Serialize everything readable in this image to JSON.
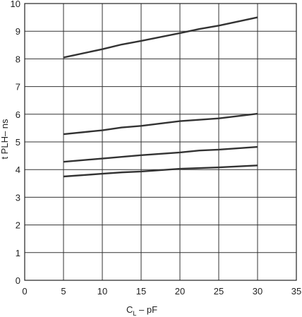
{
  "chart_data": {
    "type": "line",
    "xlabel": "C",
    "xlabel_sub": "L",
    "xlabel_suffix": " – pF",
    "ylabel": "t PLH– ns",
    "xlim": [
      0,
      35
    ],
    "ylim": [
      0,
      10
    ],
    "x_ticks": [
      0,
      5,
      10,
      15,
      20,
      25,
      30,
      35
    ],
    "y_ticks": [
      0,
      1,
      2,
      3,
      4,
      5,
      6,
      7,
      8,
      9,
      10
    ],
    "grid": true,
    "series": [
      {
        "x": [
          5,
          10,
          12.5,
          15,
          20,
          22.5,
          25,
          30
        ],
        "y": [
          8.05,
          8.35,
          8.52,
          8.65,
          8.93,
          9.08,
          9.2,
          9.5
        ]
      },
      {
        "x": [
          5,
          10,
          12.5,
          15,
          20,
          25,
          30
        ],
        "y": [
          5.28,
          5.42,
          5.52,
          5.58,
          5.75,
          5.85,
          6.02
        ]
      },
      {
        "x": [
          5,
          10,
          15,
          20,
          22.5,
          25,
          30
        ],
        "y": [
          4.28,
          4.4,
          4.52,
          4.62,
          4.69,
          4.72,
          4.82
        ]
      },
      {
        "x": [
          5,
          10,
          12.5,
          15,
          20,
          25,
          30
        ],
        "y": [
          3.75,
          3.85,
          3.9,
          3.93,
          4.03,
          4.08,
          4.15
        ]
      }
    ]
  }
}
